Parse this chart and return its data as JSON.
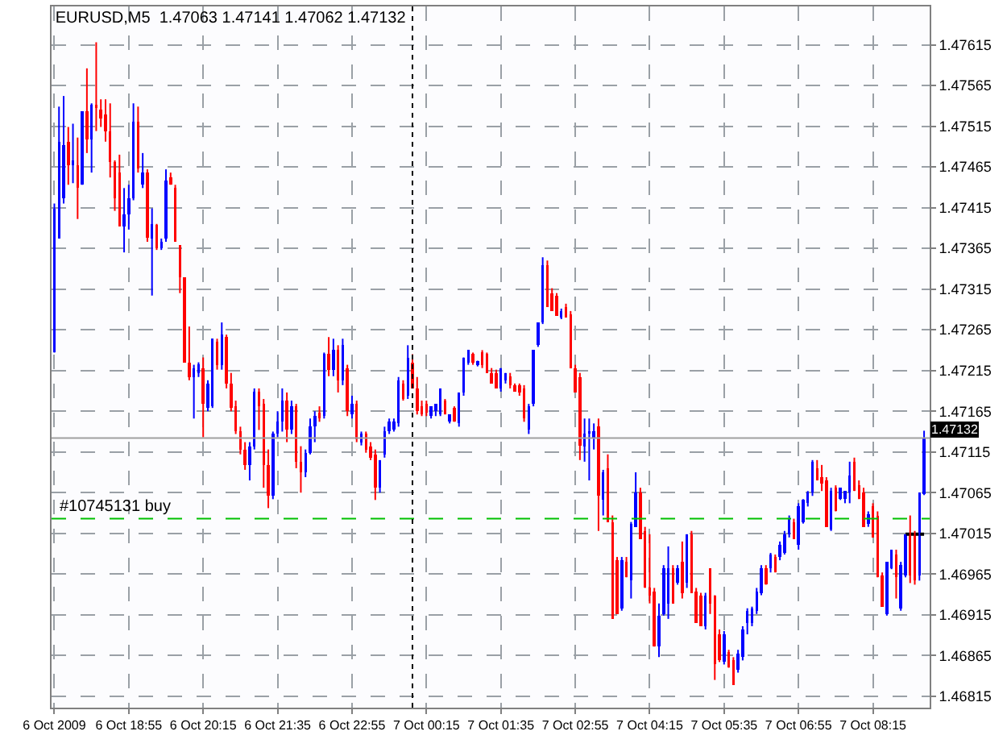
{
  "chart_data": {
    "type": "candlestick",
    "title": "EURUSD,M5  1.47063 1.47141 1.47062 1.47132",
    "colors": [
      "#0000ff",
      "#0000ff",
      "#0000ff",
      "#ff0000",
      "#0000ff",
      "#ff0000",
      "#0000ff",
      "#ff0000",
      "#0000ff",
      "#ff0000",
      "#ff0000",
      "#ff0000",
      "#ff0000",
      "#ff0000",
      "#ff0000",
      "#0000ff",
      "#0000ff",
      "#0000ff",
      "#ff0000",
      "#0000ff",
      "#ff0000",
      "#0000ff",
      "#ff0000",
      "#0000ff",
      "#0000ff",
      "#ff0000",
      "#ff0000",
      "#ff0000",
      "#ff0000",
      "#ff0000",
      "#0000ff",
      "#0000ff",
      "#ff0000",
      "#0000ff",
      "#0000ff",
      "#ff0000",
      "#0000ff",
      "#ff0000",
      "#ff0000",
      "#ff0000",
      "#ff0000",
      "#ff0000",
      "#0000ff",
      "#0000ff",
      "#ff0000",
      "#ff0000",
      "#ff0000",
      "#0000ff",
      "#0000ff",
      "#0000ff",
      "#ff0000",
      "#0000ff",
      "#ff0000",
      "#ff0000",
      "#0000ff",
      "#0000ff",
      "#0000ff",
      "#ff0000",
      "#0000ff",
      "#ff0000",
      "#0000ff",
      "#ff0000",
      "#0000ff",
      "#ff0000",
      "#0000ff",
      "#ff0000",
      "#0000ff",
      "#ff0000",
      "#ff0000",
      "#ff0000",
      "#0000ff",
      "#0000ff",
      "#0000ff",
      "#0000ff",
      "#0000ff",
      "#ff0000",
      "#0000ff",
      "#ff0000",
      "#ff0000",
      "#ff0000",
      "#ff0000",
      "#0000ff",
      "#0000ff",
      "#0000ff",
      "#ff0000",
      "#0000ff",
      "#ff0000",
      "#0000ff",
      "#0000ff",
      "#0000ff",
      "#ff0000",
      "#0000ff",
      "#ff0000",
      "#ff0000",
      "#ff0000",
      "#ff0000",
      "#0000ff",
      "#0000ff",
      "#ff0000",
      "#ff0000",
      "#ff0000",
      "#ff0000",
      "#0000ff",
      "#0000ff",
      "#0000ff",
      "#0000ff",
      "#ff0000",
      "#ff0000",
      "#ff0000",
      "#0000ff",
      "#ff0000",
      "#ff0000",
      "#ff0000",
      "#ff0000",
      "#0000ff",
      "#0000ff",
      "#0000ff",
      "#ff0000",
      "#0000ff",
      "#ff0000",
      "#ff0000",
      "#ff0000",
      "#0000ff",
      "#ff0000",
      "#0000ff",
      "#0000ff",
      "#ff0000",
      "#ff0000",
      "#ff0000",
      "#ff0000",
      "#0000ff",
      "#0000ff",
      "#0000ff",
      "#ff0000",
      "#0000ff",
      "#ff0000",
      "#0000ff",
      "#ff0000",
      "#ff0000",
      "#ff0000",
      "#0000ff",
      "#ff0000",
      "#ff0000",
      "#ff0000",
      "#0000ff",
      "#ff0000",
      "#ff0000",
      "#0000ff",
      "#0000ff",
      "#0000ff",
      "#0000ff",
      "#0000ff",
      "#0000ff",
      "#ff0000",
      "#0000ff",
      "#ff0000",
      "#0000ff",
      "#0000ff",
      "#0000ff",
      "#ff0000",
      "#0000ff",
      "#0000ff",
      "#0000ff",
      "#0000ff",
      "#ff0000",
      "#ff0000",
      "#ff0000",
      "#0000ff",
      "#ff0000",
      "#0000ff",
      "#0000ff",
      "#0000ff",
      "#ff0000",
      "#ff0000",
      "#ff0000",
      "#0000ff",
      "#ff0000",
      "#ff0000",
      "#ff0000",
      "#0000ff",
      "#0000ff",
      "#ff0000",
      "#0000ff",
      "#0000ff",
      "#ff0000",
      "#ff0000",
      "#0000ff",
      "#0000ff"
    ],
    "x": [
      "2009-10-06T17:35",
      "2009-10-06T17:40",
      "2009-10-06T17:45",
      "2009-10-06T17:50",
      "2009-10-06T17:55",
      "2009-10-06T18:00",
      "2009-10-06T18:05",
      "2009-10-06T18:10",
      "2009-10-06T18:15",
      "2009-10-06T18:20",
      "2009-10-06T18:25",
      "2009-10-06T18:30",
      "2009-10-06T18:35",
      "2009-10-06T18:40",
      "2009-10-06T18:45",
      "2009-10-06T18:50",
      "2009-10-06T18:55",
      "2009-10-06T19:00",
      "2009-10-06T19:05",
      "2009-10-06T19:10",
      "2009-10-06T19:15",
      "2009-10-06T19:20",
      "2009-10-06T19:25",
      "2009-10-06T19:30",
      "2009-10-06T19:35",
      "2009-10-06T19:40",
      "2009-10-06T19:45",
      "2009-10-06T19:50",
      "2009-10-06T19:55",
      "2009-10-06T20:00",
      "2009-10-06T20:05",
      "2009-10-06T20:10",
      "2009-10-06T20:15",
      "2009-10-06T20:20",
      "2009-10-06T20:25",
      "2009-10-06T20:30",
      "2009-10-06T20:35",
      "2009-10-06T20:40",
      "2009-10-06T20:45",
      "2009-10-06T20:50",
      "2009-10-06T20:55",
      "2009-10-06T21:00",
      "2009-10-06T21:05",
      "2009-10-06T21:10",
      "2009-10-06T21:15",
      "2009-10-06T21:20",
      "2009-10-06T21:25",
      "2009-10-06T21:30",
      "2009-10-06T21:35",
      "2009-10-06T21:40",
      "2009-10-06T21:45",
      "2009-10-06T21:50",
      "2009-10-06T21:55",
      "2009-10-06T22:00",
      "2009-10-06T22:05",
      "2009-10-06T22:10",
      "2009-10-06T22:15",
      "2009-10-06T22:20",
      "2009-10-06T22:25",
      "2009-10-06T22:30",
      "2009-10-06T22:35",
      "2009-10-06T22:40",
      "2009-10-06T22:45",
      "2009-10-06T22:50",
      "2009-10-06T22:55",
      "2009-10-06T23:00",
      "2009-10-06T23:05",
      "2009-10-06T23:10",
      "2009-10-06T23:15",
      "2009-10-06T23:20",
      "2009-10-06T23:25",
      "2009-10-06T23:30",
      "2009-10-06T23:35",
      "2009-10-06T23:40",
      "2009-10-06T23:45",
      "2009-10-06T23:50",
      "2009-10-06T23:55",
      "2009-10-07T00:00",
      "2009-10-07T00:05",
      "2009-10-07T00:10",
      "2009-10-07T00:15",
      "2009-10-07T00:20",
      "2009-10-07T00:25",
      "2009-10-07T00:30",
      "2009-10-07T00:35",
      "2009-10-07T00:40",
      "2009-10-07T00:45",
      "2009-10-07T00:50",
      "2009-10-07T00:55",
      "2009-10-07T01:00",
      "2009-10-07T01:05",
      "2009-10-07T01:10",
      "2009-10-07T01:15",
      "2009-10-07T01:20",
      "2009-10-07T01:25",
      "2009-10-07T01:30",
      "2009-10-07T01:35",
      "2009-10-07T01:40",
      "2009-10-07T01:45",
      "2009-10-07T01:50",
      "2009-10-07T01:55",
      "2009-10-07T02:00",
      "2009-10-07T02:05",
      "2009-10-07T02:10",
      "2009-10-07T02:15",
      "2009-10-07T02:20",
      "2009-10-07T02:25",
      "2009-10-07T02:30",
      "2009-10-07T02:35",
      "2009-10-07T02:40",
      "2009-10-07T02:45",
      "2009-10-07T02:50",
      "2009-10-07T02:55",
      "2009-10-07T03:00",
      "2009-10-07T03:05",
      "2009-10-07T03:10",
      "2009-10-07T03:15",
      "2009-10-07T03:20",
      "2009-10-07T03:25",
      "2009-10-07T03:30",
      "2009-10-07T03:35",
      "2009-10-07T03:40",
      "2009-10-07T03:45",
      "2009-10-07T03:50",
      "2009-10-07T03:55",
      "2009-10-07T04:00",
      "2009-10-07T04:05",
      "2009-10-07T04:10",
      "2009-10-07T04:15",
      "2009-10-07T04:20",
      "2009-10-07T04:25",
      "2009-10-07T04:30",
      "2009-10-07T04:35",
      "2009-10-07T04:40",
      "2009-10-07T04:45",
      "2009-10-07T04:50",
      "2009-10-07T04:55",
      "2009-10-07T05:00",
      "2009-10-07T05:05",
      "2009-10-07T05:10",
      "2009-10-07T05:15",
      "2009-10-07T05:20",
      "2009-10-07T05:25",
      "2009-10-07T05:30",
      "2009-10-07T05:35",
      "2009-10-07T05:40",
      "2009-10-07T05:45",
      "2009-10-07T05:50",
      "2009-10-07T05:55",
      "2009-10-07T06:00",
      "2009-10-07T06:05",
      "2009-10-07T06:10",
      "2009-10-07T06:15",
      "2009-10-07T06:20",
      "2009-10-07T06:25",
      "2009-10-07T06:30",
      "2009-10-07T06:35",
      "2009-10-07T06:40",
      "2009-10-07T06:45",
      "2009-10-07T06:50",
      "2009-10-07T06:55",
      "2009-10-07T07:00",
      "2009-10-07T07:05",
      "2009-10-07T07:10",
      "2009-10-07T07:15",
      "2009-10-07T07:20",
      "2009-10-07T07:25",
      "2009-10-07T07:30",
      "2009-10-07T07:35",
      "2009-10-07T07:40",
      "2009-10-07T07:45",
      "2009-10-07T07:50",
      "2009-10-07T07:55",
      "2009-10-07T08:00",
      "2009-10-07T08:05",
      "2009-10-07T08:10",
      "2009-10-07T08:15",
      "2009-10-07T08:20",
      "2009-10-07T08:25",
      "2009-10-07T08:30",
      "2009-10-07T08:35",
      "2009-10-07T08:40",
      "2009-10-07T08:45",
      "2009-10-07T08:50",
      "2009-10-07T08:55",
      "2009-10-07T09:00",
      "2009-10-07T09:05",
      "2009-10-07T09:10"
    ],
    "ohlc": [
      [
        1.47237,
        1.4742,
        1.47237,
        1.47414
      ],
      [
        1.47377,
        1.47539,
        1.47377,
        1.47496
      ],
      [
        1.47426,
        1.47552,
        1.4742,
        1.47492
      ],
      [
        1.47496,
        1.47514,
        1.47443,
        1.47467
      ],
      [
        1.47467,
        1.47518,
        1.47445,
        1.47473
      ],
      [
        1.47467,
        1.47501,
        1.47401,
        1.47439
      ],
      [
        1.47443,
        1.47533,
        1.47443,
        1.47533
      ],
      [
        1.47533,
        1.47586,
        1.47482,
        1.47499
      ],
      [
        1.47499,
        1.47543,
        1.47458,
        1.47541
      ],
      [
        1.47541,
        1.47618,
        1.47509,
        1.47537
      ],
      [
        1.47535,
        1.47548,
        1.47514,
        1.47524
      ],
      [
        1.47529,
        1.47548,
        1.47496,
        1.47509
      ],
      [
        1.47509,
        1.47543,
        1.47452,
        1.47471
      ],
      [
        1.47471,
        1.47473,
        1.47411,
        1.47426
      ],
      [
        1.47458,
        1.4748,
        1.47392,
        1.47392
      ],
      [
        1.47392,
        1.47439,
        1.4736,
        1.47407
      ],
      [
        1.47407,
        1.47443,
        1.47388,
        1.47426
      ],
      [
        1.47426,
        1.47543,
        1.47424,
        1.4752
      ],
      [
        1.4752,
        1.47539,
        1.47458,
        1.47463
      ],
      [
        1.47443,
        1.47482,
        1.47439,
        1.47458
      ],
      [
        1.47458,
        1.47462,
        1.47373,
        1.47378
      ],
      [
        1.47377,
        1.47414,
        1.47307,
        1.47395
      ],
      [
        1.47394,
        1.47395,
        1.47363,
        1.47365
      ],
      [
        1.47365,
        1.47377,
        1.47363,
        1.47373
      ],
      [
        1.47377,
        1.47462,
        1.47373,
        1.47448
      ],
      [
        1.47452,
        1.47458,
        1.47443,
        1.47443
      ],
      [
        1.47439,
        1.47443,
        1.47373,
        1.47373
      ],
      [
        1.47369,
        1.47369,
        1.4731,
        1.47329
      ],
      [
        1.47329,
        1.47329,
        1.47225,
        1.47225
      ],
      [
        1.47225,
        1.47269,
        1.47203,
        1.47207
      ],
      [
        1.47207,
        1.47222,
        1.47156,
        1.47218
      ],
      [
        1.47212,
        1.47225,
        1.47207,
        1.47223
      ],
      [
        1.47218,
        1.47231,
        1.47133,
        1.47174
      ],
      [
        1.47169,
        1.47203,
        1.47165,
        1.47199
      ],
      [
        1.47171,
        1.47254,
        1.47169,
        1.47254
      ],
      [
        1.4725,
        1.47254,
        1.47216,
        1.47222
      ],
      [
        1.47222,
        1.47274,
        1.47216,
        1.47259
      ],
      [
        1.47256,
        1.47259,
        1.47193,
        1.47199
      ],
      [
        1.47199,
        1.47212,
        1.47165,
        1.47169
      ],
      [
        1.47171,
        1.47178,
        1.47137,
        1.4714
      ],
      [
        1.4714,
        1.47146,
        1.47112,
        1.47118
      ],
      [
        1.47118,
        1.47127,
        1.47093,
        1.47099
      ],
      [
        1.47099,
        1.47127,
        1.4708,
        1.47122
      ],
      [
        1.47122,
        1.47193,
        1.47118,
        1.47189
      ],
      [
        1.47189,
        1.47193,
        1.47142,
        1.47171
      ],
      [
        1.47174,
        1.4718,
        1.47071,
        1.47099
      ],
      [
        1.47099,
        1.47118,
        1.47046,
        1.47061
      ],
      [
        1.47061,
        1.4714,
        1.47057,
        1.47137
      ],
      [
        1.47137,
        1.47165,
        1.47133,
        1.47152
      ],
      [
        1.47152,
        1.47193,
        1.4714,
        1.47178
      ],
      [
        1.47178,
        1.47188,
        1.47127,
        1.47142
      ],
      [
        1.47142,
        1.47178,
        1.47137,
        1.47171
      ],
      [
        1.47171,
        1.47174,
        1.47095,
        1.47103
      ],
      [
        1.47103,
        1.47122,
        1.47065,
        1.4709
      ],
      [
        1.4709,
        1.47118,
        1.47084,
        1.47114
      ],
      [
        1.47114,
        1.47156,
        1.47112,
        1.47146
      ],
      [
        1.47146,
        1.47165,
        1.47127,
        1.47159
      ],
      [
        1.47163,
        1.47171,
        1.47152,
        1.47156
      ],
      [
        1.47159,
        1.47237,
        1.47156,
        1.47235
      ],
      [
        1.47235,
        1.47256,
        1.47208,
        1.47216
      ],
      [
        1.47216,
        1.47254,
        1.47208,
        1.4724
      ],
      [
        1.4724,
        1.47246,
        1.47188,
        1.47203
      ],
      [
        1.47203,
        1.47254,
        1.47197,
        1.47246
      ],
      [
        1.47218,
        1.47222,
        1.47159,
        1.47165
      ],
      [
        1.47161,
        1.47184,
        1.47156,
        1.47174
      ],
      [
        1.47174,
        1.47178,
        1.47127,
        1.47131
      ],
      [
        1.47127,
        1.4714,
        1.47123,
        1.47137
      ],
      [
        1.47137,
        1.4714,
        1.47114,
        1.47118
      ],
      [
        1.47122,
        1.47127,
        1.47105,
        1.47108
      ],
      [
        1.47112,
        1.47118,
        1.47056,
        1.47071
      ],
      [
        1.47071,
        1.47105,
        1.47065,
        1.47105
      ],
      [
        1.47112,
        1.47146,
        1.47108,
        1.4714
      ],
      [
        1.4714,
        1.47156,
        1.47137,
        1.47152
      ],
      [
        1.47142,
        1.47156,
        1.4714,
        1.47152
      ],
      [
        1.4715,
        1.47207,
        1.47146,
        1.47203
      ],
      [
        1.47199,
        1.47203,
        1.47178,
        1.4718
      ],
      [
        1.47184,
        1.47246,
        1.4718,
        1.47231
      ],
      [
        1.47225,
        1.47235,
        1.47193,
        1.47193
      ],
      [
        1.47193,
        1.47207,
        1.47161,
        1.47165
      ],
      [
        1.47171,
        1.47178,
        1.47159,
        1.47161
      ],
      [
        1.47174,
        1.47178,
        1.47159,
        1.47163
      ],
      [
        1.47159,
        1.47171,
        1.47156,
        1.47171
      ],
      [
        1.47165,
        1.47174,
        1.47159,
        1.47174
      ],
      [
        1.47161,
        1.47193,
        1.47159,
        1.47193
      ],
      [
        1.47178,
        1.4718,
        1.47161,
        1.47161
      ],
      [
        1.47152,
        1.47161,
        1.4715,
        1.47161
      ],
      [
        1.47169,
        1.47171,
        1.47152,
        1.47152
      ],
      [
        1.4715,
        1.47188,
        1.47146,
        1.47188
      ],
      [
        1.47188,
        1.47231,
        1.47184,
        1.47231
      ],
      [
        1.47225,
        1.4724,
        1.47222,
        1.4724
      ],
      [
        1.47235,
        1.47237,
        1.47222,
        1.47225
      ],
      [
        1.47222,
        1.47227,
        1.4722,
        1.47227
      ],
      [
        1.47237,
        1.4724,
        1.47218,
        1.47222
      ],
      [
        1.47235,
        1.47237,
        1.47212,
        1.47212
      ],
      [
        1.47212,
        1.47218,
        1.47199,
        1.47199
      ],
      [
        1.47212,
        1.47216,
        1.47193,
        1.47193
      ],
      [
        1.47193,
        1.47218,
        1.47189,
        1.47218
      ],
      [
        1.47203,
        1.47212,
        1.47199,
        1.47212
      ],
      [
        1.47208,
        1.47212,
        1.47193,
        1.47197
      ],
      [
        1.47197,
        1.47199,
        1.47189,
        1.47189
      ],
      [
        1.47197,
        1.47199,
        1.47184,
        1.47188
      ],
      [
        1.47193,
        1.47197,
        1.47152,
        1.47156
      ],
      [
        1.47142,
        1.47174,
        1.47137,
        1.47171
      ],
      [
        1.47174,
        1.4724,
        1.47171,
        1.4724
      ],
      [
        1.47246,
        1.47274,
        1.47244,
        1.47274
      ],
      [
        1.47274,
        1.47354,
        1.47272,
        1.47344
      ],
      [
        1.47344,
        1.4735,
        1.47293,
        1.47293
      ],
      [
        1.4731,
        1.47316,
        1.47288,
        1.47288
      ],
      [
        1.47307,
        1.4731,
        1.47282,
        1.47282
      ],
      [
        1.4728,
        1.47291,
        1.47278,
        1.47288
      ],
      [
        1.47293,
        1.47297,
        1.4728,
        1.4728
      ],
      [
        1.47284,
        1.47288,
        1.47218,
        1.47218
      ],
      [
        1.47218,
        1.47222,
        1.47188,
        1.47188
      ],
      [
        1.47207,
        1.47212,
        1.47105,
        1.47123
      ],
      [
        1.47122,
        1.47156,
        1.47103,
        1.47137
      ],
      [
        1.47137,
        1.47156,
        1.4708,
        1.4714
      ],
      [
        1.47133,
        1.4715,
        1.47118,
        1.4714
      ],
      [
        1.47146,
        1.47156,
        1.47018,
        1.47061
      ],
      [
        1.47056,
        1.47093,
        1.47037,
        1.4709
      ],
      [
        1.47095,
        1.47112,
        1.47029,
        1.47029
      ],
      [
        1.47029,
        1.47037,
        1.4691,
        1.4691
      ],
      [
        1.46982,
        1.46986,
        1.46916,
        1.46916
      ],
      [
        1.46923,
        1.46986,
        1.4692,
        1.46982
      ],
      [
        1.4698,
        1.46986,
        1.46961,
        1.46961
      ],
      [
        1.46957,
        1.47029,
        1.46935,
        1.47027
      ],
      [
        1.47023,
        1.4709,
        1.47023,
        1.47065
      ],
      [
        1.47065,
        1.47071,
        1.47008,
        1.47008
      ],
      [
        1.47018,
        1.47023,
        1.46948,
        1.46948
      ],
      [
        1.46948,
        1.47014,
        1.46929,
        1.46939
      ],
      [
        1.46944,
        1.46948,
        1.46876,
        1.46876
      ],
      [
        1.46876,
        1.46929,
        1.46863,
        1.46914
      ],
      [
        1.46916,
        1.46976,
        1.46914,
        1.46972
      ],
      [
        1.46929,
        1.46999,
        1.4691,
        1.46972
      ],
      [
        1.46972,
        1.46976,
        1.46929,
        1.46929
      ],
      [
        1.46954,
        1.46976,
        1.46952,
        1.46972
      ],
      [
        1.4698,
        1.47005,
        1.46935,
        1.46942
      ],
      [
        1.46954,
        1.47014,
        1.46948,
        1.47014
      ],
      [
        1.47014,
        1.47018,
        1.46942,
        1.46942
      ],
      [
        1.46944,
        1.46948,
        1.46905,
        1.46905
      ],
      [
        1.46939,
        1.46942,
        1.46901,
        1.46901
      ],
      [
        1.46901,
        1.46942,
        1.46897,
        1.46939
      ],
      [
        1.46972,
        1.46972,
        1.46916,
        1.46929
      ],
      [
        1.46939,
        1.46939,
        1.46835,
        1.46854
      ],
      [
        1.46891,
        1.46897,
        1.46857,
        1.46859
      ],
      [
        1.46857,
        1.46895,
        1.46854,
        1.46891
      ],
      [
        1.46869,
        1.46872,
        1.4685,
        1.4685
      ],
      [
        1.46859,
        1.46863,
        1.46829,
        1.46829
      ],
      [
        1.46848,
        1.46872,
        1.46844,
        1.46867
      ],
      [
        1.46863,
        1.46901,
        1.46859,
        1.46897
      ],
      [
        1.46905,
        1.46923,
        1.46891,
        1.4692
      ],
      [
        1.46905,
        1.46925,
        1.46901,
        1.46923
      ],
      [
        1.4692,
        1.46948,
        1.46916,
        1.46944
      ],
      [
        1.46942,
        1.46976,
        1.46939,
        1.46972
      ],
      [
        1.46972,
        1.46976,
        1.46952,
        1.46952
      ],
      [
        1.46972,
        1.46991,
        1.46967,
        1.46989
      ],
      [
        1.46986,
        1.46989,
        1.46967,
        1.46967
      ],
      [
        1.46986,
        1.47005,
        1.46982,
        1.47001
      ],
      [
        1.46991,
        1.47018,
        1.46989,
        1.47014
      ],
      [
        1.47014,
        1.47037,
        1.4701,
        1.47033
      ],
      [
        1.47029,
        1.47033,
        1.47008,
        1.47008
      ],
      [
        1.47001,
        1.47052,
        1.46995,
        1.47048
      ],
      [
        1.47029,
        1.47057,
        1.47027,
        1.47056
      ],
      [
        1.47052,
        1.47067,
        1.47048,
        1.47065
      ],
      [
        1.47065,
        1.47105,
        1.47061,
        1.47103
      ],
      [
        1.47095,
        1.47105,
        1.4708,
        1.4708
      ],
      [
        1.47084,
        1.47099,
        1.47067,
        1.47076
      ],
      [
        1.4708,
        1.47084,
        1.47023,
        1.47023
      ],
      [
        1.4702,
        1.47071,
        1.47018,
        1.47067
      ],
      [
        1.47071,
        1.47074,
        1.47042,
        1.47042
      ],
      [
        1.47057,
        1.47071,
        1.47056,
        1.47071
      ],
      [
        1.47057,
        1.47067,
        1.47052,
        1.47067
      ],
      [
        1.47065,
        1.47103,
        1.47052,
        1.47086
      ],
      [
        1.47103,
        1.47108,
        1.47067,
        1.47067
      ],
      [
        1.47074,
        1.4708,
        1.47057,
        1.47057
      ],
      [
        1.47065,
        1.47071,
        1.47023,
        1.47023
      ],
      [
        1.47027,
        1.47042,
        1.47023,
        1.47039
      ],
      [
        1.47048,
        1.47052,
        1.4701,
        1.4701
      ],
      [
        1.47037,
        1.47042,
        1.46961,
        1.46961
      ],
      [
        1.46963,
        1.46967,
        1.46925,
        1.46925
      ],
      [
        1.46916,
        1.4698,
        1.46914,
        1.4698
      ],
      [
        1.46972,
        1.46995,
        1.46971,
        1.46995
      ],
      [
        1.46989,
        1.46995,
        1.46935,
        1.46961
      ],
      [
        1.46923,
        1.4698,
        1.4692,
        1.46976
      ],
      [
        1.46963,
        1.47014,
        1.46961,
        1.47014
      ],
      [
        1.47014,
        1.47037,
        1.46954,
        1.46963
      ],
      [
        1.47014,
        1.47018,
        1.46952,
        1.46957
      ],
      [
        1.46963,
        1.47065,
        1.46957,
        1.47065
      ],
      [
        1.47063,
        1.47141,
        1.47062,
        1.47132
      ]
    ],
    "series": [
      {
        "type": "line",
        "color": "#000000",
        "x": [
          "2009-10-07T08:50",
          "2009-10-07T09:10"
        ],
        "values": [
          1.47014,
          1.47014
        ]
      }
    ],
    "xlim": [
      "2009-10-06T17:32",
      "2009-10-07T09:16"
    ],
    "xticks": [
      {
        "value": "2009-10-06T17:35",
        "label": "6 Oct 2009"
      },
      {
        "value": "2009-10-06T18:55",
        "label": "6 Oct 18:55"
      },
      {
        "value": "2009-10-06T20:15",
        "label": "6 Oct 20:15"
      },
      {
        "value": "2009-10-06T21:35",
        "label": "6 Oct 21:35"
      },
      {
        "value": "2009-10-06T22:55",
        "label": "6 Oct 22:55"
      },
      {
        "value": "2009-10-07T00:15",
        "label": "7 Oct 00:15"
      },
      {
        "value": "2009-10-07T01:35",
        "label": "7 Oct 01:35"
      },
      {
        "value": "2009-10-07T02:55",
        "label": "7 Oct 02:55"
      },
      {
        "value": "2009-10-07T04:15",
        "label": "7 Oct 04:15"
      },
      {
        "value": "2009-10-07T05:35",
        "label": "7 Oct 05:35"
      },
      {
        "value": "2009-10-07T06:55",
        "label": "7 Oct 06:55"
      },
      {
        "value": "2009-10-07T08:15",
        "label": "7 Oct 08:15"
      }
    ],
    "ylim": [
      1.46801,
      1.47662
    ],
    "yticks": [
      1.46815,
      1.46865,
      1.46915,
      1.46965,
      1.47015,
      1.47065,
      1.47115,
      1.47165,
      1.47215,
      1.47265,
      1.47315,
      1.47365,
      1.47415,
      1.47465,
      1.47515,
      1.47565,
      1.47615
    ],
    "grid": true,
    "ref_lines": [
      {
        "axis": "y",
        "value": 1.47033,
        "label": "#10745131 buy",
        "color": "#00c000",
        "line_style": "dashed"
      },
      {
        "axis": "y",
        "value": 1.47132,
        "label": "1.47132",
        "color": "#a0a0a0",
        "line_style": "solid"
      },
      {
        "axis": "x",
        "value": "2009-10-07T00:00",
        "color": "#000000",
        "line_style": "dotted"
      }
    ]
  }
}
